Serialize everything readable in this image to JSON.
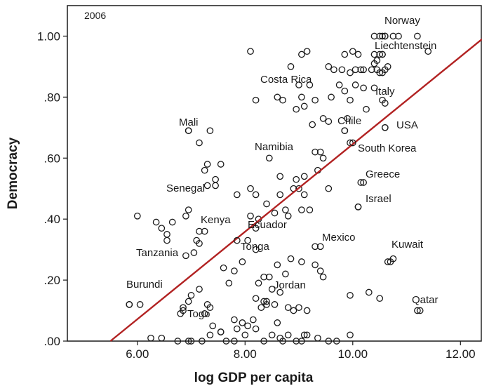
{
  "chart_data": {
    "type": "scatter",
    "title": "",
    "panel_label": "2006",
    "xlabel": "log GDP per capita",
    "ylabel": "Democracy",
    "xlim": [
      4.7,
      12.4
    ],
    "ylim": [
      0,
      1.1
    ],
    "xticks": [
      6.0,
      8.0,
      10.0,
      12.0
    ],
    "xtick_labels": [
      "6.00",
      "8.00",
      "10.00",
      "12.00"
    ],
    "yticks": [
      0,
      0.2,
      0.4,
      0.6,
      0.8,
      1.0
    ],
    "ytick_labels": [
      ".00",
      ".20",
      ".40",
      ".60",
      ".80",
      "1.00"
    ],
    "grid": false,
    "colors": {
      "fit_line": "#b22222",
      "points": "#1a1a1a",
      "frame": "#1a1a1a"
    },
    "fit_line": {
      "x": [
        5.5,
        12.4
      ],
      "y": [
        0.0,
        0.99
      ]
    },
    "labeled_points": [
      {
        "label": "Norway",
        "x": 10.6,
        "y": 1.0
      },
      {
        "label": "Liechtenstein",
        "x": 10.55,
        "y": 0.94
      },
      {
        "label": "Costa Rica",
        "x": 9.0,
        "y": 0.84
      },
      {
        "label": "Italy",
        "x": 10.4,
        "y": 0.83
      },
      {
        "label": "Mali",
        "x": 6.95,
        "y": 0.69
      },
      {
        "label": "Chile",
        "x": 9.85,
        "y": 0.69
      },
      {
        "label": "USA",
        "x": 10.6,
        "y": 0.7
      },
      {
        "label": "Namibia",
        "x": 8.45,
        "y": 0.6
      },
      {
        "label": "South Korea",
        "x": 10.0,
        "y": 0.65
      },
      {
        "label": "Greece",
        "x": 10.15,
        "y": 0.52
      },
      {
        "label": "Senegal",
        "x": 7.3,
        "y": 0.51
      },
      {
        "label": "Israel",
        "x": 10.1,
        "y": 0.44
      },
      {
        "label": "Kenya",
        "x": 7.15,
        "y": 0.36
      },
      {
        "label": "Ecuador",
        "x": 8.2,
        "y": 0.37
      },
      {
        "label": "Mexico",
        "x": 9.3,
        "y": 0.31
      },
      {
        "label": "Tanzania",
        "x": 6.9,
        "y": 0.28
      },
      {
        "label": "Tonga",
        "x": 7.85,
        "y": 0.33
      },
      {
        "label": "Kuwait",
        "x": 10.65,
        "y": 0.26
      },
      {
        "label": "Burundi",
        "x": 5.85,
        "y": 0.12
      },
      {
        "label": "Jordan",
        "x": 8.4,
        "y": 0.13
      },
      {
        "label": "Togo",
        "x": 6.85,
        "y": 0.1
      },
      {
        "label": "Qatar",
        "x": 11.25,
        "y": 0.1
      }
    ],
    "points": [
      [
        6.0,
        0.41
      ],
      [
        6.35,
        0.39
      ],
      [
        6.45,
        0.37
      ],
      [
        6.55,
        0.35
      ],
      [
        6.55,
        0.33
      ],
      [
        6.65,
        0.39
      ],
      [
        6.9,
        0.41
      ],
      [
        6.95,
        0.43
      ],
      [
        7.1,
        0.33
      ],
      [
        7.15,
        0.32
      ],
      [
        7.25,
        0.36
      ],
      [
        7.05,
        0.29
      ],
      [
        6.95,
        0.69
      ],
      [
        7.15,
        0.65
      ],
      [
        7.35,
        0.69
      ],
      [
        7.25,
        0.56
      ],
      [
        7.3,
        0.58
      ],
      [
        7.45,
        0.53
      ],
      [
        7.45,
        0.51
      ],
      [
        7.55,
        0.58
      ],
      [
        7.85,
        0.48
      ],
      [
        8.1,
        0.5
      ],
      [
        8.1,
        0.41
      ],
      [
        8.2,
        0.48
      ],
      [
        8.25,
        0.4
      ],
      [
        8.4,
        0.45
      ],
      [
        8.55,
        0.42
      ],
      [
        8.65,
        0.48
      ],
      [
        8.65,
        0.54
      ],
      [
        8.75,
        0.43
      ],
      [
        8.8,
        0.41
      ],
      [
        8.9,
        0.5
      ],
      [
        8.95,
        0.53
      ],
      [
        9.0,
        0.5
      ],
      [
        9.05,
        0.43
      ],
      [
        9.1,
        0.48
      ],
      [
        9.1,
        0.54
      ],
      [
        9.2,
        0.43
      ],
      [
        9.35,
        0.56
      ],
      [
        9.4,
        0.62
      ],
      [
        9.45,
        0.6
      ],
      [
        9.3,
        0.62
      ],
      [
        9.55,
        0.5
      ],
      [
        9.95,
        0.65
      ],
      [
        10.2,
        0.52
      ],
      [
        10.1,
        0.44
      ],
      [
        9.25,
        0.71
      ],
      [
        9.45,
        0.73
      ],
      [
        9.55,
        0.72
      ],
      [
        9.85,
        0.69
      ],
      [
        9.9,
        0.73
      ],
      [
        10.6,
        0.7
      ],
      [
        8.95,
        0.76
      ],
      [
        9.1,
        0.77
      ],
      [
        9.2,
        0.84
      ],
      [
        9.3,
        0.79
      ],
      [
        9.05,
        0.8
      ],
      [
        8.6,
        0.8
      ],
      [
        8.7,
        0.79
      ],
      [
        8.2,
        0.79
      ],
      [
        8.85,
        0.9
      ],
      [
        9.55,
        0.9
      ],
      [
        9.65,
        0.89
      ],
      [
        9.75,
        0.84
      ],
      [
        9.85,
        0.82
      ],
      [
        9.95,
        0.79
      ],
      [
        10.05,
        0.84
      ],
      [
        10.2,
        0.83
      ],
      [
        10.25,
        0.76
      ],
      [
        10.55,
        0.79
      ],
      [
        10.6,
        0.78
      ],
      [
        9.6,
        0.8
      ],
      [
        9.8,
        0.89
      ],
      [
        9.95,
        0.88
      ],
      [
        10.05,
        0.89
      ],
      [
        10.2,
        0.89
      ],
      [
        10.35,
        0.89
      ],
      [
        10.45,
        0.89
      ],
      [
        10.5,
        0.88
      ],
      [
        10.55,
        0.88
      ],
      [
        10.6,
        0.89
      ],
      [
        10.65,
        0.9
      ],
      [
        10.4,
        0.91
      ],
      [
        10.45,
        0.92
      ],
      [
        10.4,
        0.94
      ],
      [
        10.5,
        0.94
      ],
      [
        10.55,
        0.94
      ],
      [
        10.4,
        1.0
      ],
      [
        10.5,
        1.0
      ],
      [
        10.55,
        1.0
      ],
      [
        10.6,
        1.0
      ],
      [
        10.75,
        1.0
      ],
      [
        10.85,
        1.0
      ],
      [
        11.2,
        1.0
      ],
      [
        11.4,
        0.95
      ],
      [
        9.05,
        0.94
      ],
      [
        9.15,
        0.95
      ],
      [
        8.1,
        0.95
      ],
      [
        9.85,
        0.94
      ],
      [
        10.0,
        0.95
      ],
      [
        10.1,
        0.94
      ],
      [
        10.15,
        0.89
      ],
      [
        7.3,
        0.12
      ],
      [
        7.35,
        0.11
      ],
      [
        7.25,
        0.09
      ],
      [
        7.15,
        0.17
      ],
      [
        7.0,
        0.15
      ],
      [
        6.85,
        0.11
      ],
      [
        6.8,
        0.09
      ],
      [
        6.95,
        0.13
      ],
      [
        7.6,
        0.24
      ],
      [
        7.7,
        0.19
      ],
      [
        7.8,
        0.23
      ],
      [
        7.95,
        0.26
      ],
      [
        8.05,
        0.33
      ],
      [
        8.2,
        0.3
      ],
      [
        8.25,
        0.19
      ],
      [
        8.35,
        0.21
      ],
      [
        8.45,
        0.21
      ],
      [
        8.5,
        0.17
      ],
      [
        8.6,
        0.25
      ],
      [
        8.75,
        0.22
      ],
      [
        8.85,
        0.27
      ],
      [
        9.05,
        0.26
      ],
      [
        9.3,
        0.25
      ],
      [
        9.4,
        0.23
      ],
      [
        9.45,
        0.21
      ],
      [
        9.4,
        0.31
      ],
      [
        8.35,
        0.13
      ],
      [
        8.4,
        0.12
      ],
      [
        8.55,
        0.12
      ],
      [
        8.65,
        0.16
      ],
      [
        8.8,
        0.11
      ],
      [
        8.9,
        0.1
      ],
      [
        9.0,
        0.11
      ],
      [
        9.15,
        0.1
      ],
      [
        8.2,
        0.14
      ],
      [
        8.3,
        0.11
      ],
      [
        9.95,
        0.15
      ],
      [
        10.3,
        0.16
      ],
      [
        10.5,
        0.14
      ],
      [
        11.2,
        0.1
      ],
      [
        10.7,
        0.26
      ],
      [
        10.75,
        0.27
      ],
      [
        6.25,
        0.01
      ],
      [
        6.45,
        0.01
      ],
      [
        6.75,
        0.0
      ],
      [
        7.0,
        0.0
      ],
      [
        7.35,
        0.02
      ],
      [
        7.55,
        0.03
      ],
      [
        7.85,
        0.04
      ],
      [
        8.05,
        0.05
      ],
      [
        8.0,
        0.02
      ],
      [
        7.8,
        0.0
      ],
      [
        8.2,
        0.04
      ],
      [
        8.5,
        0.02
      ],
      [
        8.65,
        0.01
      ],
      [
        8.8,
        0.02
      ],
      [
        9.05,
        0.0
      ],
      [
        9.15,
        0.02
      ],
      [
        9.35,
        0.01
      ],
      [
        9.55,
        0.0
      ],
      [
        9.95,
        0.02
      ],
      [
        7.65,
        0.0
      ],
      [
        8.35,
        0.0
      ],
      [
        8.95,
        0.0
      ],
      [
        9.7,
        0.0
      ],
      [
        5.85,
        0.12
      ],
      [
        6.05,
        0.12
      ],
      [
        7.8,
        0.07
      ],
      [
        7.95,
        0.06
      ],
      [
        7.55,
        0.03
      ],
      [
        8.7,
        0.0
      ],
      [
        7.4,
        0.05
      ],
      [
        8.6,
        0.06
      ],
      [
        8.15,
        0.07
      ],
      [
        9.1,
        0.02
      ],
      [
        6.95,
        0.0
      ],
      [
        7.2,
        0.0
      ]
    ]
  }
}
